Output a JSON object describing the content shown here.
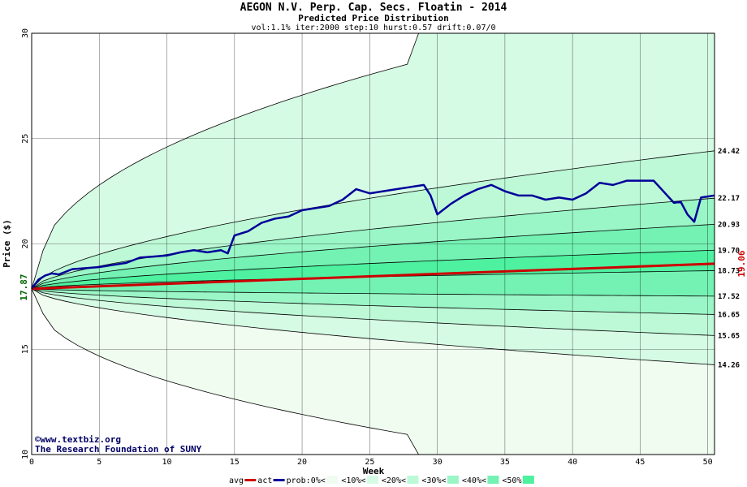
{
  "chart_data": {
    "type": "area",
    "title": "AEGON N.V. Perp. Cap. Secs. Floatin - 2014",
    "subtitle": "Predicted Price Distribution",
    "params": "vol:1.1% iter:2000 step:10 hurst:0.57 drift:0.07/0",
    "xlabel": "Week",
    "ylabel": "Price ($)",
    "xlim": [
      0,
      50.5
    ],
    "ylim": [
      10,
      30
    ],
    "x_ticks": [
      0,
      5,
      10,
      15,
      20,
      25,
      30,
      35,
      40,
      45,
      50
    ],
    "y_ticks": [
      10,
      15,
      20,
      25,
      30
    ],
    "grid": true,
    "start_price": 17.87,
    "start_label": "17.87",
    "end_avg_label": "19.06",
    "band_levels": [
      30.0,
      24.42,
      22.17,
      20.93,
      19.7,
      18.73,
      17.52,
      16.65,
      15.65,
      14.26,
      10.0
    ],
    "band_labels": [
      "24.42",
      "22.17",
      "20.93",
      "19.70",
      "18.73",
      "17.52",
      "16.65",
      "15.65",
      "14.26"
    ],
    "band_colors": [
      "#f0fcf0",
      "#d6fbe4",
      "#bdf9d7",
      "#9af6c6",
      "#74f2b3",
      "#4df19f",
      "#74f2b3",
      "#9af6c6",
      "#bdf9d7",
      "#d6fbe4",
      "#f0fcf0"
    ],
    "avg_line": {
      "name": "avg",
      "start": 17.87,
      "end": 19.06,
      "color": "#cc0000"
    },
    "actual_series": {
      "name": "act",
      "color": "#000099",
      "x": [
        0,
        0.5,
        1,
        1.5,
        2,
        3,
        4,
        5,
        6,
        7,
        8,
        9,
        10,
        11,
        12,
        13,
        14,
        14.5,
        15,
        16,
        17,
        18,
        19,
        20,
        21,
        22,
        23,
        24,
        25,
        26,
        27,
        28,
        29,
        29.5,
        30,
        31,
        32,
        33,
        34,
        35,
        36,
        37,
        38,
        39,
        40,
        41,
        42,
        43,
        44,
        45,
        46,
        47,
        47.5,
        48,
        48.5,
        49,
        49.5,
        50,
        50.5
      ],
      "y": [
        17.87,
        18.3,
        18.5,
        18.6,
        18.55,
        18.8,
        18.85,
        18.9,
        19.0,
        19.1,
        19.35,
        19.4,
        19.45,
        19.6,
        19.7,
        19.6,
        19.7,
        19.55,
        20.4,
        20.6,
        21.0,
        21.2,
        21.3,
        21.6,
        21.7,
        21.8,
        22.1,
        22.6,
        22.4,
        22.5,
        22.6,
        22.7,
        22.8,
        22.3,
        21.4,
        21.9,
        22.3,
        22.6,
        22.8,
        22.5,
        22.3,
        22.3,
        22.1,
        22.2,
        22.1,
        22.4,
        22.9,
        22.8,
        23.0,
        23.0,
        23.0,
        22.3,
        21.95,
        22.0,
        21.4,
        21.05,
        22.2,
        22.25,
        22.3
      ]
    }
  },
  "legend": {
    "items": [
      {
        "label": "avg",
        "kind": "line",
        "color": "#cc0000"
      },
      {
        "label": "act",
        "kind": "line",
        "color": "#000099"
      },
      {
        "label": "prob:0%<",
        "kind": "swatch",
        "color": "#f0fcf0"
      },
      {
        "label": "<10%<",
        "kind": "swatch",
        "color": "#d6fbe4"
      },
      {
        "label": "<20%<",
        "kind": "swatch",
        "color": "#bdf9d7"
      },
      {
        "label": "<30%<",
        "kind": "swatch",
        "color": "#9af6c6"
      },
      {
        "label": "<40%<",
        "kind": "swatch",
        "color": "#74f2b3"
      },
      {
        "label": "<50%",
        "kind": "swatch",
        "color": "#4df19f"
      }
    ]
  },
  "credit": {
    "line1": "©www.textbiz.org",
    "line2": "The Research Foundation of SUNY"
  }
}
